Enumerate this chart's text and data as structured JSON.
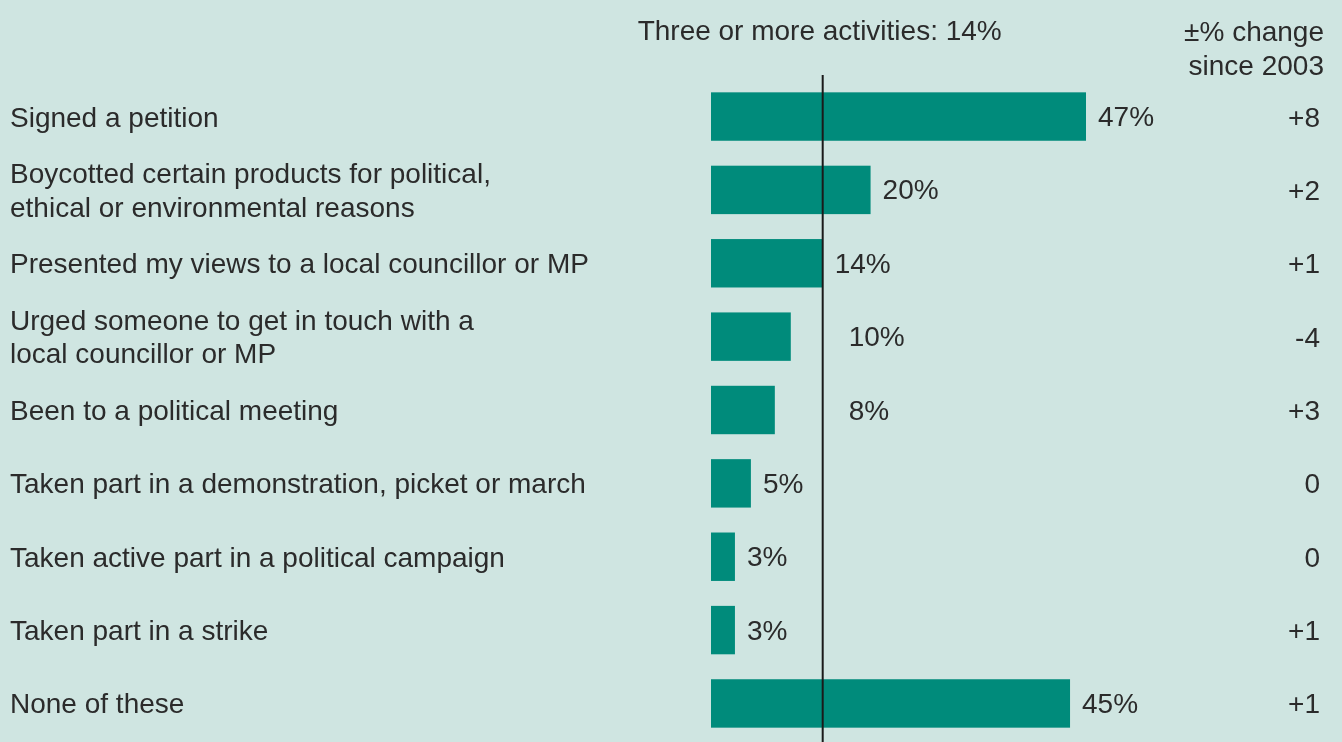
{
  "chart_data": {
    "type": "bar",
    "orientation": "horizontal",
    "color": "#008b7b",
    "categories": [
      "Signed a petition",
      "Boycotted certain products for political,\nethical or environmental reasons",
      "Presented my views to a local councillor or MP",
      "Urged someone to get in touch with a\nlocal councillor or MP",
      "Been to a political meeting",
      "Taken part in a demonstration, picket or march",
      "Taken active part in a political campaign",
      "Taken part in a strike",
      "None of these"
    ],
    "values": [
      47,
      20,
      14,
      10,
      8,
      5,
      3,
      3,
      45
    ],
    "value_labels": [
      "47%",
      "20%",
      "14%",
      "10%",
      "8%",
      "5%",
      "3%",
      "3%",
      "45%"
    ],
    "ref_lines": [
      {
        "axis": "x",
        "value": 14,
        "label": "Three or more activities: 14%",
        "color": "#1a1a1a"
      }
    ],
    "annotations": [
      "±% change\nsince 2003",
      "+8",
      "+2",
      "+1",
      "-4",
      "+3",
      "0",
      "0",
      "+1",
      "+1"
    ]
  }
}
